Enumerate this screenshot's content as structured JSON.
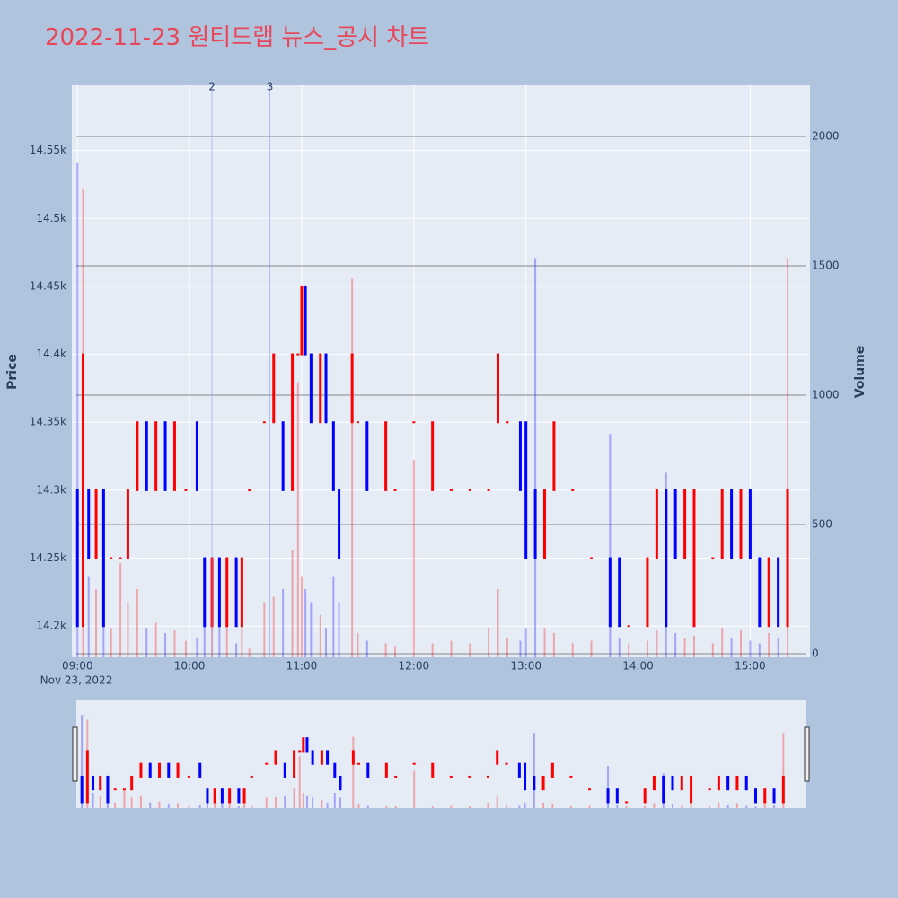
{
  "chart_data": {
    "type": "candlestick",
    "title": "2022-11-23 원티드랩 뉴스_공시 차트",
    "ylabel": "Price",
    "y2label": "Volume",
    "x_date_label": "Nov 23, 2022",
    "increasing_color": "#ff0000",
    "decreasing_color": "#0000ff",
    "xlim": [
      "08:57",
      "15:32"
    ],
    "xticks": [
      "09:00",
      "10:00",
      "11:00",
      "12:00",
      "13:00",
      "14:00",
      "15:00"
    ],
    "ylim": [
      14177,
      14598
    ],
    "yticks": [
      {
        "value": 14200,
        "label": "14.2k"
      },
      {
        "value": 14250,
        "label": "14.25k"
      },
      {
        "value": 14300,
        "label": "14.3k"
      },
      {
        "value": 14350,
        "label": "14.35k"
      },
      {
        "value": 14400,
        "label": "14.4k"
      },
      {
        "value": 14450,
        "label": "14.45k"
      },
      {
        "value": 14500,
        "label": "14.5k"
      },
      {
        "value": 14550,
        "label": "14.55k"
      }
    ],
    "y2lim": [
      -14,
      2198
    ],
    "y2ticks": [
      0,
      500,
      1000,
      1500,
      2000
    ],
    "annotations": [
      {
        "x": "10:12",
        "text": "2"
      },
      {
        "x": "10:43",
        "text": "3"
      }
    ],
    "x": [
      "09:00",
      "09:03",
      "09:06",
      "09:10",
      "09:14",
      "09:18",
      "09:23",
      "09:27",
      "09:32",
      "09:37",
      "09:42",
      "09:47",
      "09:52",
      "09:58",
      "10:04",
      "10:08",
      "10:12",
      "10:16",
      "10:20",
      "10:25",
      "10:28",
      "10:32",
      "10:40",
      "10:45",
      "10:50",
      "10:55",
      "10:58",
      "11:00",
      "11:02",
      "11:05",
      "11:10",
      "11:13",
      "11:17",
      "11:20",
      "11:27",
      "11:30",
      "11:35",
      "11:45",
      "11:50",
      "12:00",
      "12:10",
      "12:20",
      "12:30",
      "12:40",
      "12:45",
      "12:50",
      "12:57",
      "13:00",
      "13:05",
      "13:10",
      "13:15",
      "13:25",
      "13:35",
      "13:45",
      "13:50",
      "13:55",
      "14:05",
      "14:10",
      "14:15",
      "14:20",
      "14:25",
      "14:30",
      "14:40",
      "14:45",
      "14:50",
      "14:55",
      "15:00",
      "15:05",
      "15:10",
      "15:15",
      "15:20"
    ],
    "open": [
      14300,
      14200,
      14300,
      14250,
      14300,
      14250,
      14250,
      14250,
      14300,
      14350,
      14300,
      14350,
      14300,
      14300,
      14350,
      14250,
      14200,
      14250,
      14200,
      14250,
      14200,
      14300,
      14350,
      14350,
      14350,
      14300,
      14400,
      14400,
      14450,
      14400,
      14350,
      14400,
      14350,
      14300,
      14350,
      14350,
      14350,
      14300,
      14300,
      14350,
      14300,
      14300,
      14300,
      14300,
      14350,
      14350,
      14350,
      14350,
      14300,
      14250,
      14300,
      14300,
      14250,
      14250,
      14250,
      14200,
      14200,
      14250,
      14300,
      14300,
      14250,
      14200,
      14250,
      14250,
      14300,
      14250,
      14300,
      14250,
      14200,
      14250,
      14200
    ],
    "close": [
      14200,
      14400,
      14250,
      14300,
      14200,
      14250,
      14250,
      14300,
      14350,
      14300,
      14350,
      14300,
      14350,
      14300,
      14300,
      14200,
      14250,
      14200,
      14250,
      14200,
      14250,
      14300,
      14350,
      14400,
      14300,
      14400,
      14400,
      14450,
      14400,
      14350,
      14400,
      14350,
      14300,
      14250,
      14400,
      14350,
      14300,
      14350,
      14300,
      14350,
      14350,
      14300,
      14300,
      14300,
      14400,
      14350,
      14300,
      14250,
      14250,
      14300,
      14350,
      14300,
      14250,
      14200,
      14200,
      14200,
      14250,
      14300,
      14200,
      14250,
      14300,
      14300,
      14250,
      14300,
      14250,
      14300,
      14250,
      14200,
      14250,
      14200,
      14300
    ],
    "volume": [
      1900,
      1800,
      300,
      250,
      150,
      100,
      350,
      200,
      250,
      100,
      120,
      80,
      90,
      50,
      60,
      300,
      150,
      120,
      250,
      40,
      200,
      20,
      200,
      220,
      250,
      400,
      1050,
      300,
      250,
      200,
      150,
      100,
      300,
      200,
      1450,
      80,
      50,
      40,
      30,
      750,
      40,
      50,
      40,
      100,
      250,
      60,
      50,
      100,
      1530,
      100,
      80,
      40,
      50,
      850,
      60,
      40,
      50,
      90,
      700,
      80,
      60,
      70,
      40,
      100,
      60,
      90,
      50,
      40,
      80,
      60,
      1530
    ]
  }
}
